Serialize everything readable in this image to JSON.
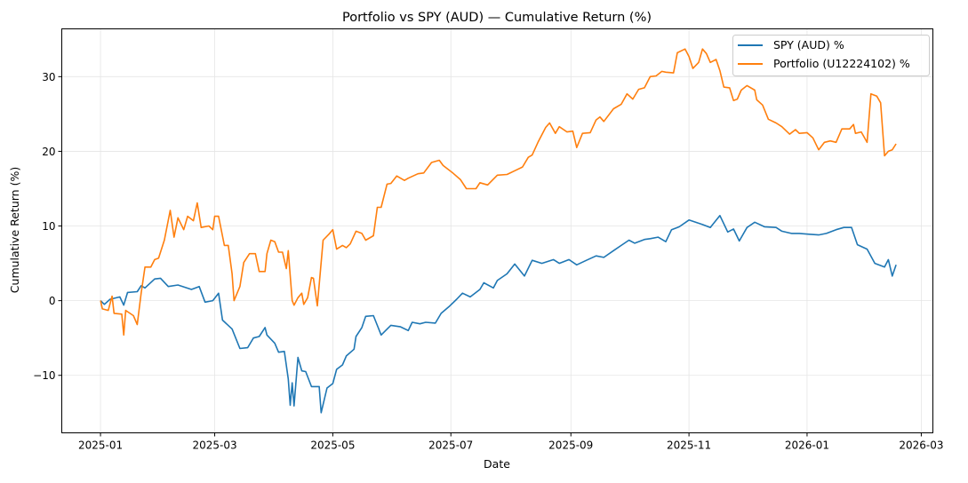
{
  "chart_data": {
    "type": "line",
    "title": "Portfolio vs SPY (AUD) — Cumulative Return (%)",
    "xlabel": "Date",
    "ylabel": "Cumulative Return (%)",
    "xlim": [
      "2024-12-12",
      "2026-03-07"
    ],
    "ylim": [
      -17.7,
      36.4
    ],
    "x_ticks": [
      {
        "date": "2025-01-01",
        "label": "2025-01"
      },
      {
        "date": "2025-03-01",
        "label": "2025-03"
      },
      {
        "date": "2025-05-01",
        "label": "2025-05"
      },
      {
        "date": "2025-07-01",
        "label": "2025-07"
      },
      {
        "date": "2025-09-01",
        "label": "2025-09"
      },
      {
        "date": "2025-11-01",
        "label": "2025-11"
      },
      {
        "date": "2026-01-01",
        "label": "2026-01"
      },
      {
        "date": "2026-03-01",
        "label": "2026-03"
      }
    ],
    "y_ticks": [
      {
        "value": -10,
        "label": "−10"
      },
      {
        "value": 0,
        "label": "0"
      },
      {
        "value": 10,
        "label": "10"
      },
      {
        "value": 20,
        "label": "20"
      },
      {
        "value": 30,
        "label": "30"
      }
    ],
    "grid": true,
    "legend_position": "top-right",
    "series": [
      {
        "name": "SPY (AUD) %",
        "color": "#1f77b4",
        "points": [
          [
            "2025-01-01",
            0
          ],
          [
            "2025-01-03",
            -0.5
          ],
          [
            "2025-01-06",
            0.2
          ],
          [
            "2025-01-11",
            0.5
          ],
          [
            "2025-01-13",
            -0.6
          ],
          [
            "2025-01-15",
            1.1
          ],
          [
            "2025-01-20",
            1.2
          ],
          [
            "2025-01-22",
            2.0
          ],
          [
            "2025-01-24",
            1.7
          ],
          [
            "2025-01-29",
            2.9
          ],
          [
            "2025-02-01",
            3.0
          ],
          [
            "2025-02-05",
            1.9
          ],
          [
            "2025-02-10",
            2.1
          ],
          [
            "2025-02-17",
            1.5
          ],
          [
            "2025-02-21",
            1.9
          ],
          [
            "2025-02-24",
            -0.2
          ],
          [
            "2025-02-28",
            0.0
          ],
          [
            "2025-03-03",
            1.0
          ],
          [
            "2025-03-05",
            -2.6
          ],
          [
            "2025-03-10",
            -3.8
          ],
          [
            "2025-03-14",
            -6.4
          ],
          [
            "2025-03-18",
            -6.3
          ],
          [
            "2025-03-21",
            -5.0
          ],
          [
            "2025-03-24",
            -4.8
          ],
          [
            "2025-03-27",
            -3.6
          ],
          [
            "2025-03-28",
            -4.6
          ],
          [
            "2025-04-01",
            -5.7
          ],
          [
            "2025-04-03",
            -6.9
          ],
          [
            "2025-04-06",
            -6.8
          ],
          [
            "2025-04-08",
            -10.5
          ],
          [
            "2025-04-09",
            -14.0
          ],
          [
            "2025-04-10",
            -11.0
          ],
          [
            "2025-04-11",
            -14.1
          ],
          [
            "2025-04-13",
            -7.6
          ],
          [
            "2025-04-15",
            -9.4
          ],
          [
            "2025-04-17",
            -9.5
          ],
          [
            "2025-04-20",
            -11.5
          ],
          [
            "2025-04-24",
            -11.5
          ],
          [
            "2025-04-25",
            -15.0
          ],
          [
            "2025-04-28",
            -11.7
          ],
          [
            "2025-05-01",
            -11.1
          ],
          [
            "2025-05-03",
            -9.2
          ],
          [
            "2025-05-06",
            -8.6
          ],
          [
            "2025-05-08",
            -7.4
          ],
          [
            "2025-05-12",
            -6.5
          ],
          [
            "2025-05-13",
            -4.8
          ],
          [
            "2025-05-16",
            -3.6
          ],
          [
            "2025-05-18",
            -2.1
          ],
          [
            "2025-05-22",
            -2.0
          ],
          [
            "2025-05-26",
            -4.6
          ],
          [
            "2025-05-31",
            -3.3
          ],
          [
            "2025-06-05",
            -3.5
          ],
          [
            "2025-06-09",
            -4.0
          ],
          [
            "2025-06-11",
            -2.9
          ],
          [
            "2025-06-15",
            -3.1
          ],
          [
            "2025-06-18",
            -2.9
          ],
          [
            "2025-06-23",
            -3.0
          ],
          [
            "2025-06-26",
            -1.7
          ],
          [
            "2025-06-30",
            -0.8
          ],
          [
            "2025-07-04",
            0.2
          ],
          [
            "2025-07-07",
            1.0
          ],
          [
            "2025-07-11",
            0.5
          ],
          [
            "2025-07-16",
            1.5
          ],
          [
            "2025-07-18",
            2.4
          ],
          [
            "2025-07-23",
            1.7
          ],
          [
            "2025-07-25",
            2.7
          ],
          [
            "2025-07-30",
            3.6
          ],
          [
            "2025-08-03",
            4.9
          ],
          [
            "2025-08-08",
            3.3
          ],
          [
            "2025-08-12",
            5.4
          ],
          [
            "2025-08-17",
            5.0
          ],
          [
            "2025-08-23",
            5.5
          ],
          [
            "2025-08-26",
            5.0
          ],
          [
            "2025-08-31",
            5.5
          ],
          [
            "2025-09-04",
            4.8
          ],
          [
            "2025-09-09",
            5.4
          ],
          [
            "2025-09-14",
            6.0
          ],
          [
            "2025-09-18",
            5.8
          ],
          [
            "2025-09-23",
            6.7
          ],
          [
            "2025-09-27",
            7.4
          ],
          [
            "2025-10-01",
            8.1
          ],
          [
            "2025-10-04",
            7.7
          ],
          [
            "2025-10-09",
            8.2
          ],
          [
            "2025-10-12",
            8.3
          ],
          [
            "2025-10-16",
            8.5
          ],
          [
            "2025-10-20",
            7.9
          ],
          [
            "2025-10-23",
            9.5
          ],
          [
            "2025-10-27",
            9.9
          ],
          [
            "2025-11-01",
            10.8
          ],
          [
            "2025-11-08",
            10.2
          ],
          [
            "2025-11-12",
            9.8
          ],
          [
            "2025-11-17",
            11.4
          ],
          [
            "2025-11-21",
            9.2
          ],
          [
            "2025-11-24",
            9.6
          ],
          [
            "2025-11-27",
            8.0
          ],
          [
            "2025-12-01",
            9.8
          ],
          [
            "2025-12-05",
            10.5
          ],
          [
            "2025-12-10",
            9.9
          ],
          [
            "2025-12-16",
            9.8
          ],
          [
            "2025-12-19",
            9.3
          ],
          [
            "2025-12-24",
            9.0
          ],
          [
            "2025-12-28",
            9.0
          ],
          [
            "2026-01-02",
            8.9
          ],
          [
            "2026-01-07",
            8.8
          ],
          [
            "2026-01-11",
            9.0
          ],
          [
            "2026-01-16",
            9.5
          ],
          [
            "2026-01-20",
            9.8
          ],
          [
            "2026-01-24",
            9.8
          ],
          [
            "2026-01-27",
            7.5
          ],
          [
            "2026-02-01",
            6.9
          ],
          [
            "2026-02-05",
            5.0
          ],
          [
            "2026-02-10",
            4.5
          ],
          [
            "2026-02-12",
            5.5
          ],
          [
            "2026-02-14",
            3.3
          ],
          [
            "2026-02-16",
            4.8
          ]
        ]
      },
      {
        "name": "Portfolio (U12224102) %",
        "color": "#ff7f0e",
        "points": [
          [
            "2025-01-01",
            0
          ],
          [
            "2025-01-02",
            -1.1
          ],
          [
            "2025-01-05",
            -1.3
          ],
          [
            "2025-01-07",
            0.6
          ],
          [
            "2025-01-08",
            -1.7
          ],
          [
            "2025-01-12",
            -1.8
          ],
          [
            "2025-01-13",
            -4.6
          ],
          [
            "2025-01-14",
            -1.3
          ],
          [
            "2025-01-18",
            -2.0
          ],
          [
            "2025-01-20",
            -3.2
          ],
          [
            "2025-01-22",
            1.0
          ],
          [
            "2025-01-24",
            4.5
          ],
          [
            "2025-01-27",
            4.5
          ],
          [
            "2025-01-29",
            5.5
          ],
          [
            "2025-01-31",
            5.7
          ],
          [
            "2025-02-03",
            8.1
          ],
          [
            "2025-02-06",
            12.1
          ],
          [
            "2025-02-08",
            8.5
          ],
          [
            "2025-02-10",
            11.1
          ],
          [
            "2025-02-13",
            9.5
          ],
          [
            "2025-02-15",
            11.3
          ],
          [
            "2025-02-18",
            10.7
          ],
          [
            "2025-02-20",
            13.1
          ],
          [
            "2025-02-22",
            9.8
          ],
          [
            "2025-02-26",
            10.0
          ],
          [
            "2025-02-28",
            9.5
          ],
          [
            "2025-03-01",
            11.3
          ],
          [
            "2025-03-03",
            11.3
          ],
          [
            "2025-03-06",
            7.4
          ],
          [
            "2025-03-08",
            7.4
          ],
          [
            "2025-03-10",
            3.6
          ],
          [
            "2025-03-11",
            0.0
          ],
          [
            "2025-03-14",
            1.9
          ],
          [
            "2025-03-16",
            5.1
          ],
          [
            "2025-03-19",
            6.3
          ],
          [
            "2025-03-22",
            6.3
          ],
          [
            "2025-03-24",
            3.9
          ],
          [
            "2025-03-27",
            3.9
          ],
          [
            "2025-03-28",
            6.3
          ],
          [
            "2025-03-30",
            8.1
          ],
          [
            "2025-04-01",
            7.9
          ],
          [
            "2025-04-03",
            6.5
          ],
          [
            "2025-04-05",
            6.5
          ],
          [
            "2025-04-07",
            4.3
          ],
          [
            "2025-04-08",
            6.7
          ],
          [
            "2025-04-10",
            0.0
          ],
          [
            "2025-04-11",
            -0.6
          ],
          [
            "2025-04-13",
            0.4
          ],
          [
            "2025-04-15",
            1.0
          ],
          [
            "2025-04-16",
            -0.5
          ],
          [
            "2025-04-18",
            0.4
          ],
          [
            "2025-04-20",
            3.1
          ],
          [
            "2025-04-21",
            3.0
          ],
          [
            "2025-04-23",
            -0.7
          ],
          [
            "2025-04-26",
            8.1
          ],
          [
            "2025-04-29",
            8.9
          ],
          [
            "2025-05-01",
            9.5
          ],
          [
            "2025-05-03",
            6.9
          ],
          [
            "2025-05-06",
            7.4
          ],
          [
            "2025-05-08",
            7.1
          ],
          [
            "2025-05-10",
            7.6
          ],
          [
            "2025-05-13",
            9.3
          ],
          [
            "2025-05-16",
            9.0
          ],
          [
            "2025-05-18",
            8.1
          ],
          [
            "2025-05-22",
            8.7
          ],
          [
            "2025-05-24",
            12.5
          ],
          [
            "2025-05-26",
            12.5
          ],
          [
            "2025-05-29",
            15.6
          ],
          [
            "2025-05-31",
            15.7
          ],
          [
            "2025-06-03",
            16.7
          ],
          [
            "2025-06-07",
            16.1
          ],
          [
            "2025-06-09",
            16.4
          ],
          [
            "2025-06-14",
            17.0
          ],
          [
            "2025-06-17",
            17.1
          ],
          [
            "2025-06-21",
            18.5
          ],
          [
            "2025-06-25",
            18.8
          ],
          [
            "2025-06-27",
            18.1
          ],
          [
            "2025-07-02",
            17.1
          ],
          [
            "2025-07-06",
            16.2
          ],
          [
            "2025-07-09",
            15.0
          ],
          [
            "2025-07-14",
            15.0
          ],
          [
            "2025-07-16",
            15.8
          ],
          [
            "2025-07-20",
            15.5
          ],
          [
            "2025-07-25",
            16.8
          ],
          [
            "2025-07-30",
            16.9
          ],
          [
            "2025-08-03",
            17.4
          ],
          [
            "2025-08-07",
            17.9
          ],
          [
            "2025-08-10",
            19.2
          ],
          [
            "2025-08-12",
            19.5
          ],
          [
            "2025-08-15",
            21.2
          ],
          [
            "2025-08-19",
            23.2
          ],
          [
            "2025-08-21",
            23.8
          ],
          [
            "2025-08-24",
            22.4
          ],
          [
            "2025-08-26",
            23.3
          ],
          [
            "2025-08-30",
            22.6
          ],
          [
            "2025-09-02",
            22.7
          ],
          [
            "2025-09-04",
            20.5
          ],
          [
            "2025-09-07",
            22.4
          ],
          [
            "2025-09-11",
            22.5
          ],
          [
            "2025-09-14",
            24.2
          ],
          [
            "2025-09-16",
            24.6
          ],
          [
            "2025-09-18",
            24.0
          ],
          [
            "2025-09-23",
            25.7
          ],
          [
            "2025-09-27",
            26.3
          ],
          [
            "2025-09-30",
            27.7
          ],
          [
            "2025-10-03",
            27.0
          ],
          [
            "2025-10-06",
            28.3
          ],
          [
            "2025-10-09",
            28.5
          ],
          [
            "2025-10-12",
            30.0
          ],
          [
            "2025-10-15",
            30.1
          ],
          [
            "2025-10-18",
            30.7
          ],
          [
            "2025-10-20",
            30.6
          ],
          [
            "2025-10-24",
            30.5
          ],
          [
            "2025-10-26",
            33.2
          ],
          [
            "2025-10-30",
            33.7
          ],
          [
            "2025-11-01",
            32.7
          ],
          [
            "2025-11-03",
            31.1
          ],
          [
            "2025-11-06",
            31.9
          ],
          [
            "2025-11-08",
            33.7
          ],
          [
            "2025-11-10",
            33.1
          ],
          [
            "2025-11-12",
            31.9
          ],
          [
            "2025-11-15",
            32.3
          ],
          [
            "2025-11-17",
            30.8
          ],
          [
            "2025-11-19",
            28.6
          ],
          [
            "2025-11-22",
            28.5
          ],
          [
            "2025-11-24",
            26.8
          ],
          [
            "2025-11-26",
            27.0
          ],
          [
            "2025-11-28",
            28.2
          ],
          [
            "2025-12-01",
            28.8
          ],
          [
            "2025-12-05",
            28.2
          ],
          [
            "2025-12-06",
            26.9
          ],
          [
            "2025-12-09",
            26.2
          ],
          [
            "2025-12-12",
            24.3
          ],
          [
            "2025-12-16",
            23.8
          ],
          [
            "2025-12-19",
            23.3
          ],
          [
            "2025-12-23",
            22.3
          ],
          [
            "2025-12-26",
            22.9
          ],
          [
            "2025-12-28",
            22.4
          ],
          [
            "2026-01-01",
            22.5
          ],
          [
            "2026-01-04",
            21.8
          ],
          [
            "2026-01-07",
            20.2
          ],
          [
            "2026-01-10",
            21.2
          ],
          [
            "2026-01-13",
            21.4
          ],
          [
            "2026-01-16",
            21.2
          ],
          [
            "2026-01-19",
            23.0
          ],
          [
            "2026-01-23",
            23.0
          ],
          [
            "2026-01-25",
            23.6
          ],
          [
            "2026-01-26",
            22.4
          ],
          [
            "2026-01-29",
            22.6
          ],
          [
            "2026-02-01",
            21.2
          ],
          [
            "2026-02-03",
            27.7
          ],
          [
            "2026-02-06",
            27.4
          ],
          [
            "2026-02-08",
            26.5
          ],
          [
            "2026-02-10",
            19.4
          ],
          [
            "2026-02-12",
            20.0
          ],
          [
            "2026-02-14",
            20.2
          ],
          [
            "2026-02-16",
            21.0
          ]
        ]
      }
    ]
  }
}
